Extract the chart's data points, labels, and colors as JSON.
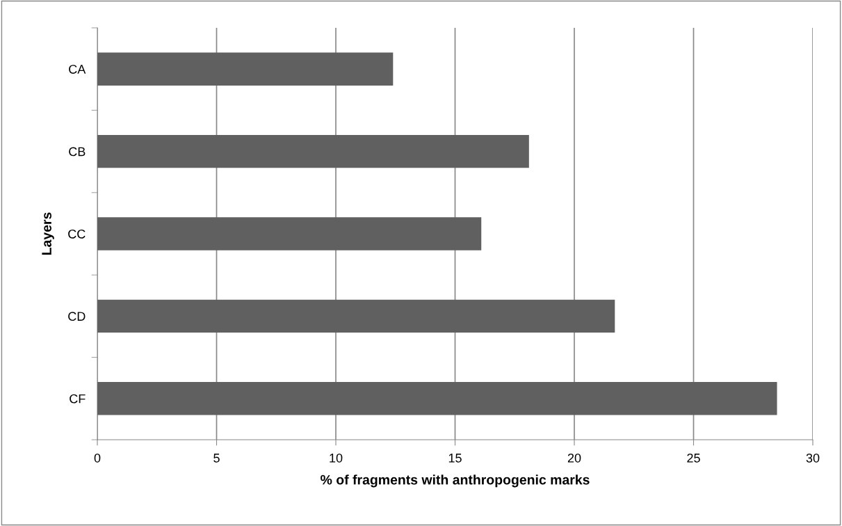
{
  "chart_data": {
    "type": "bar",
    "orientation": "horizontal",
    "categories": [
      "CA",
      "CB",
      "CC",
      "CD",
      "CF"
    ],
    "values": [
      12.4,
      18.1,
      16.1,
      21.7,
      28.5
    ],
    "color": "#606060",
    "xlabel": "% of fragments with anthropogenic marks",
    "ylabel": "Layers",
    "xlim": [
      0,
      30
    ],
    "xticks": [
      0,
      5,
      10,
      15,
      20,
      25,
      30
    ],
    "grid": "x",
    "legend": false
  }
}
